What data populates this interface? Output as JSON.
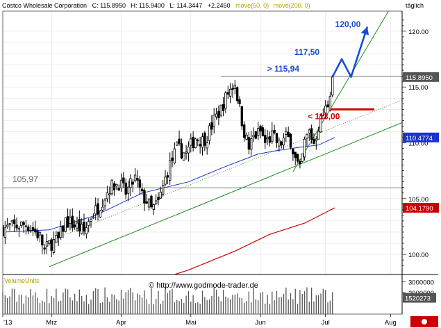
{
  "header": {
    "instrument": "Costco Wholesale Corporation",
    "c_text": "C: 115.8950",
    "h_text": "H: 115.9400",
    "l_text": "L: 114.3447",
    "change_text": "+2.2450",
    "ma50_text": "move(50, 0)",
    "ma200_text": "move(200, 0)",
    "interval": "täglich"
  },
  "colors": {
    "background": "#ffffff",
    "grid": "#e3e3e3",
    "candle": "#000000",
    "ma50": "#1a33cc",
    "ma200": "#cc0000",
    "trendline": "#1d8a1d",
    "annotation_blue": "#1a4bd6",
    "annotation_red": "#d40000",
    "level_line": "#666666",
    "ma_header": "#b3a000",
    "volume": "#555555"
  },
  "volume_panel": {
    "title": "VolumeUnits",
    "ticks": [
      "3000000",
      "2000000"
    ],
    "current": "1520273"
  },
  "watermark": "© http://www.godmode-trader.de",
  "chart_data": {
    "type": "candlestick",
    "title": "Costco Wholesale Corporation",
    "y_ticks": [
      "120.00",
      "115.00",
      "110.00",
      "105.00",
      "100.00"
    ],
    "ylim": [
      98.2,
      121.8
    ],
    "x_labels": [
      {
        "label": "'13",
        "day": 0
      },
      {
        "label": "Mrz",
        "day": 21
      },
      {
        "label": "Apr",
        "day": 51
      },
      {
        "label": "Mai",
        "day": 81
      },
      {
        "label": "Jun",
        "day": 111
      },
      {
        "label": "Jul",
        "day": 139
      },
      {
        "label": "Aug",
        "day": 167
      }
    ],
    "price_badges": [
      {
        "text": "115.8950",
        "value": 115.895,
        "color": "#555555"
      },
      {
        "text": "110.4774",
        "value": 110.4774,
        "color": "#1a33cc"
      },
      {
        "text": "104.1790",
        "value": 104.179,
        "color": "#cc0000"
      }
    ],
    "horizontal_levels": [
      {
        "value": 115.94,
        "label": "> 115,94",
        "from_day": 94,
        "to_day": 173
      },
      {
        "value": 105.97,
        "label": "105,97",
        "from_day": -1,
        "to_day": 173
      }
    ],
    "support_mark": {
      "value": 113.0,
      "label": "< 113,00",
      "from_day": 141,
      "to_day": 160
    },
    "targets": [
      {
        "value": 117.5,
        "label": "117,50"
      },
      {
        "value": 120.0,
        "label": "120,00"
      }
    ],
    "projection": [
      [
        142,
        115.9
      ],
      [
        146,
        117.5
      ],
      [
        150,
        115.9
      ],
      [
        157,
        120.4
      ]
    ],
    "trendlines": [
      {
        "from": [
          20,
          98.9
        ],
        "to": [
          186,
          113.0
        ],
        "style": "solid"
      },
      {
        "from": [
          20,
          101.2
        ],
        "to": [
          186,
          115.0
        ],
        "style": "dotted"
      },
      {
        "from": [
          125,
          107.4
        ],
        "to": [
          167,
          122.1
        ],
        "style": "solid"
      }
    ],
    "ma50_points": [
      [
        0,
        102.0
      ],
      [
        20,
        102.2
      ],
      [
        40,
        103.5
      ],
      [
        60,
        105.5
      ],
      [
        80,
        106.5
      ],
      [
        95,
        107.8
      ],
      [
        110,
        109.0
      ],
      [
        118,
        109.3
      ],
      [
        128,
        109.6
      ],
      [
        136,
        109.8
      ],
      [
        143,
        110.48
      ]
    ],
    "ma200_points": [
      [
        51,
        96.7
      ],
      [
        62,
        97.4
      ],
      [
        80,
        98.6
      ],
      [
        100,
        100.3
      ],
      [
        115,
        101.8
      ],
      [
        130,
        102.8
      ],
      [
        143,
        104.18
      ]
    ],
    "candle_range": [
      0,
      142
    ],
    "candle_anchors": [
      [
        0,
        102.3
      ],
      [
        5,
        102.5
      ],
      [
        10,
        102.7
      ],
      [
        13,
        102.2
      ],
      [
        16,
        101.6
      ],
      [
        18,
        100.3
      ],
      [
        20,
        100.9
      ],
      [
        24,
        101.3
      ],
      [
        27,
        103.0
      ],
      [
        32,
        102.5
      ],
      [
        35,
        102.0
      ],
      [
        38,
        103.4
      ],
      [
        42,
        104.5
      ],
      [
        46,
        106.0
      ],
      [
        50,
        106.4
      ],
      [
        53,
        105.5
      ],
      [
        57,
        106.8
      ],
      [
        60,
        105.2
      ],
      [
        62,
        104.8
      ],
      [
        64,
        104.0
      ],
      [
        67,
        104.6
      ],
      [
        71,
        107.5
      ],
      [
        75,
        109.5
      ],
      [
        79,
        109.0
      ],
      [
        83,
        110.5
      ],
      [
        86,
        110.2
      ],
      [
        88,
        110.6
      ],
      [
        91,
        112.0
      ],
      [
        94,
        113.0
      ],
      [
        97,
        114.5
      ],
      [
        100,
        115.4
      ],
      [
        102,
        113.0
      ],
      [
        104,
        111.0
      ],
      [
        106,
        109.5
      ],
      [
        108,
        110.5
      ],
      [
        111,
        111.0
      ],
      [
        113,
        110.0
      ],
      [
        116,
        110.6
      ],
      [
        119,
        109.8
      ],
      [
        122,
        110.5
      ],
      [
        124,
        110.2
      ],
      [
        126,
        108.5
      ],
      [
        128,
        107.5
      ],
      [
        130,
        110.0
      ],
      [
        132,
        111.0
      ],
      [
        134,
        110.0
      ],
      [
        136,
        111.5
      ],
      [
        138,
        112.5
      ],
      [
        140,
        113.5
      ],
      [
        142,
        115.9
      ]
    ],
    "volume_ylim": [
      0,
      3500000
    ],
    "volume_range": [
      0,
      142
    ]
  }
}
